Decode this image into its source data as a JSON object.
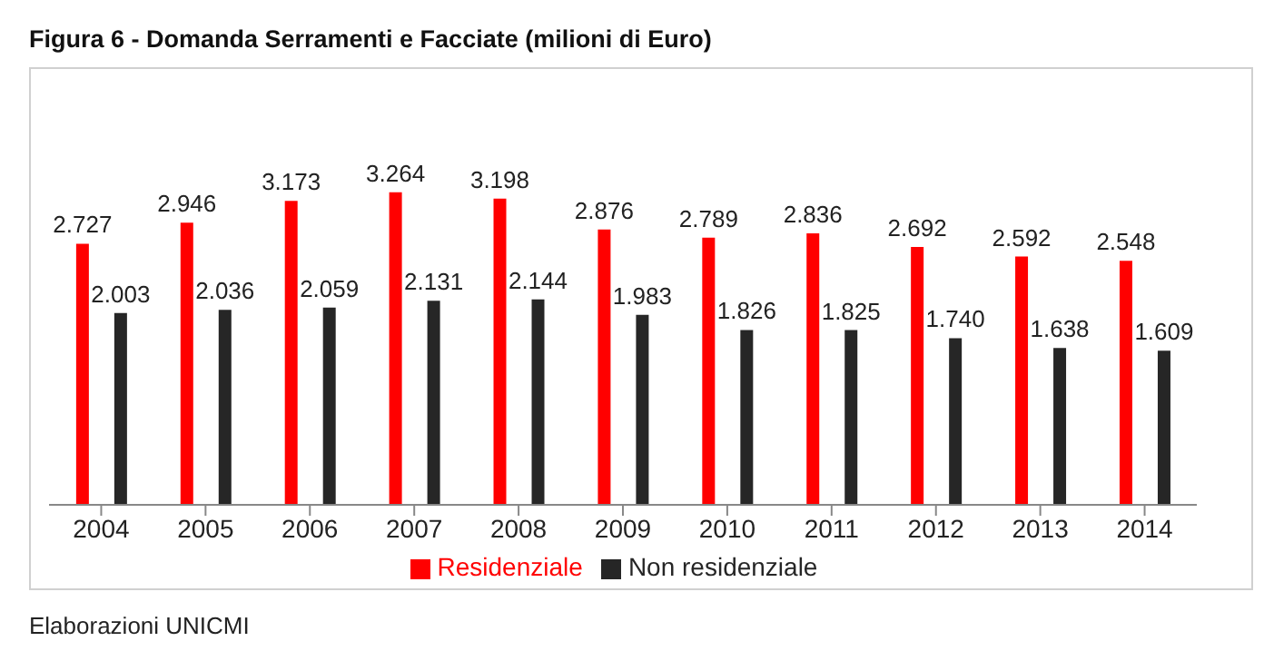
{
  "chart_data": {
    "type": "bar",
    "title": "Figura 6 - Domanda Serramenti e Facciate (milioni di Euro)",
    "categories": [
      "2004",
      "2005",
      "2006",
      "2007",
      "2008",
      "2009",
      "2010",
      "2011",
      "2012",
      "2013",
      "2014"
    ],
    "series": [
      {
        "name": "Residenziale",
        "color": "#ff0000",
        "values": [
          2727,
          2946,
          3173,
          3264,
          3198,
          2876,
          2789,
          2836,
          2692,
          2592,
          2548
        ],
        "value_labels": [
          "2.727",
          "2.946",
          "3.173",
          "3.264",
          "3.198",
          "2.876",
          "2.789",
          "2.836",
          "2.692",
          "2.592",
          "2.548"
        ]
      },
      {
        "name": "Non residenziale",
        "color": "#262626",
        "values": [
          2003,
          2036,
          2059,
          2131,
          2144,
          1983,
          1826,
          1825,
          1740,
          1638,
          1609
        ],
        "value_labels": [
          "2.003",
          "2.036",
          "2.059",
          "2.131",
          "2.144",
          "1.983",
          "1.826",
          "1.825",
          "1.740",
          "1.638",
          "1.609"
        ]
      }
    ],
    "legend": "bottom",
    "grid": false,
    "annotations": [
      "Elaborazioni UNICMI"
    ]
  }
}
